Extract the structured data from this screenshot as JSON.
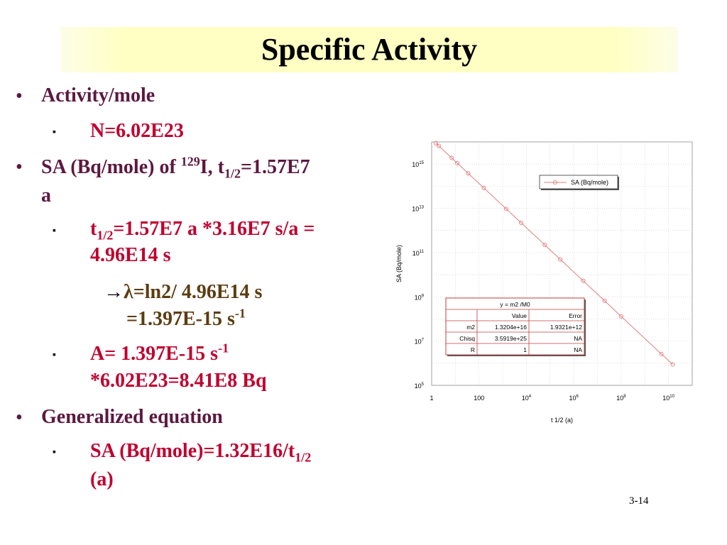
{
  "title": "Specific Activity",
  "lines": {
    "b1": "Activity/mole",
    "b1a": "N=6.02E23",
    "b2_pre": "SA (Bq/mole) of ",
    "b2_sup": "129",
    "b2_mid": "I, t",
    "b2_sub": "1/2",
    "b2_end": "=1.57E7",
    "b2_cont": "a",
    "b2a_pre": "t",
    "b2a_sub": "1/2",
    "b2a_end": "=1.57E7 a *3.16E7 s/a =",
    "b2a_cont": "4.96E14 s",
    "arrow": "→",
    "lambda": "λ",
    "l3_end": "=ln2/ 4.96E14 s",
    "l3_cont_pre": "=1.397E-15 s",
    "l3_cont_sup": "-1",
    "b2b_pre": "A= 1.397E-15 s",
    "b2b_sup": "-1",
    "b2b_cont": "*6.02E23=8.41E8 Bq",
    "b3": "Generalized equation",
    "b3a_pre": "SA (Bq/mole)=1.32E16/t",
    "b3a_sub": "1/2",
    "b3a_cont": "(a)"
  },
  "markers": {
    "bullet": "•",
    "square": "▪"
  },
  "slide_number": "3-14",
  "chart_data": {
    "type": "scatter",
    "log_x": true,
    "log_y": true,
    "xlim": [
      1,
      100000000000.0
    ],
    "ylim": [
      100000.0,
      1e+16
    ],
    "xlabel": "t 1/2 (a)",
    "ylabel": "SA (Bq/mole)",
    "x_ticks": [
      {
        "base": "1",
        "exp": ""
      },
      {
        "base": "100",
        "exp": ""
      },
      {
        "base": "10",
        "exp": "4"
      },
      {
        "base": "10",
        "exp": "6"
      },
      {
        "base": "10",
        "exp": "8"
      },
      {
        "base": "10",
        "exp": "10"
      }
    ],
    "y_ticks": [
      {
        "base": "10",
        "exp": "5"
      },
      {
        "base": "10",
        "exp": "7"
      },
      {
        "base": "10",
        "exp": "9"
      },
      {
        "base": "10",
        "exp": "11"
      },
      {
        "base": "10",
        "exp": "13"
      },
      {
        "base": "10",
        "exp": "15"
      }
    ],
    "series": [
      {
        "name": "SA (Bq/mole)",
        "color": "#e08080",
        "x": [
          1.5,
          2,
          7,
          12,
          35,
          160,
          1400,
          6000,
          60000,
          270000,
          2500000.0,
          20000000.0,
          100000000.0,
          5000000000.0,
          15000000000.0
        ],
        "y": [
          8800000000000000.0,
          6600000000000000.0,
          1900000000000000.0,
          1100000000000000.0,
          380000000000000.0,
          83000000000000.0,
          9400000000000.0,
          2200000000000.0,
          220000000000.0,
          49000000000.0,
          5300000000.0,
          660000000.0,
          130000000.0,
          2600000.0,
          880000.0
        ]
      }
    ],
    "fit_table": {
      "title": "y = m2 /M0",
      "headers": [
        "",
        "Value",
        "Error"
      ],
      "rows": [
        [
          "m2",
          "1.3204e+16",
          "1.9321e+12"
        ],
        [
          "Chisq",
          "3.5919e+25",
          "NA"
        ],
        [
          "R",
          "1",
          "NA"
        ]
      ]
    },
    "grid": true,
    "legend": "top-right"
  }
}
